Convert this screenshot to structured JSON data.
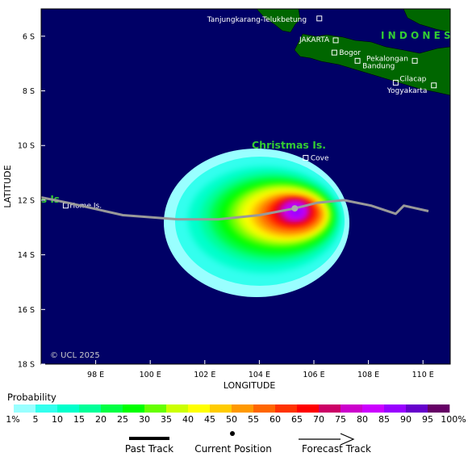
{
  "map": {
    "axes": {
      "xlabel": "LONGITUDE",
      "ylabel": "LATITUDE",
      "lon_range": [
        96,
        111
      ],
      "lat_range": [
        -18,
        -5
      ],
      "lon_ticks": [
        {
          "value": 98,
          "label": "98 E"
        },
        {
          "value": 100,
          "label": "100 E"
        },
        {
          "value": 102,
          "label": "102 E"
        },
        {
          "value": 104,
          "label": "104 E"
        },
        {
          "value": 106,
          "label": "106 E"
        },
        {
          "value": 108,
          "label": "108 E"
        },
        {
          "value": 110,
          "label": "110 E"
        }
      ],
      "lat_ticks": [
        {
          "value": -6,
          "label": "6 S"
        },
        {
          "value": -8,
          "label": "8 S"
        },
        {
          "value": -10,
          "label": "10 S"
        },
        {
          "value": -12,
          "label": "12 S"
        },
        {
          "value": -14,
          "label": "14 S"
        },
        {
          "value": -16,
          "label": "16 S"
        },
        {
          "value": -18,
          "label": "18 S"
        }
      ]
    },
    "copyright": "© UCL 2025",
    "region_labels": {
      "christmas": "Christmas Is.",
      "indonesia": "I N D O N E S",
      "cocos": "s Is."
    },
    "places": [
      {
        "name": "Tanjungkarang-Telukbetung",
        "lon": 106.2,
        "lat": -5.35
      },
      {
        "name": "JAKARTA",
        "lon": 106.8,
        "lat": -6.15
      },
      {
        "name": "Bogor",
        "lon": 106.75,
        "lat": -6.6
      },
      {
        "name": "Pekalongan",
        "lon": 109.7,
        "lat": -6.9
      },
      {
        "name": "Bandung",
        "lon": 107.6,
        "lat": -6.9
      },
      {
        "name": "Cilacap",
        "lon": 109.0,
        "lat": -7.7
      },
      {
        "name": "Yogyakarta",
        "lon": 110.4,
        "lat": -7.8
      },
      {
        "name": "Cove",
        "lon": 105.7,
        "lat": -10.45
      },
      {
        "name": "Home Is.",
        "lon": 96.9,
        "lat": -12.2
      }
    ],
    "track": {
      "past": [
        [
          110.2,
          -12.4
        ],
        [
          109.3,
          -12.2
        ],
        [
          109.0,
          -12.5
        ],
        [
          108.1,
          -12.2
        ],
        [
          107.1,
          -12.0
        ],
        [
          106.1,
          -12.1
        ],
        [
          105.3,
          -12.3
        ],
        [
          104.0,
          -12.55
        ],
        [
          102.5,
          -12.7
        ],
        [
          101.0,
          -12.7
        ],
        [
          99.0,
          -12.55
        ],
        [
          97.0,
          -12.1
        ],
        [
          96.0,
          -11.9
        ]
      ],
      "current": [
        105.3,
        -12.3
      ]
    },
    "colors": {
      "ocean": "#000066",
      "land": "#006600",
      "region_label": "#33cc33",
      "track": "#999999"
    }
  },
  "legend": {
    "title": "Probability",
    "labels": [
      "1%",
      "5",
      "10",
      "15",
      "20",
      "25",
      "30",
      "35",
      "40",
      "45",
      "50",
      "55",
      "60",
      "65",
      "70",
      "75",
      "80",
      "85",
      "90",
      "95",
      "100%"
    ],
    "colors": [
      "#99ffff",
      "#33ffee",
      "#00ffcc",
      "#00ff99",
      "#00ff44",
      "#00ff00",
      "#66ff00",
      "#ccff00",
      "#ffff00",
      "#ffcc00",
      "#ff9900",
      "#ff6600",
      "#ff3300",
      "#ff0000",
      "#cc0066",
      "#cc00cc",
      "#cc00ff",
      "#9900ff",
      "#6600cc",
      "#660066"
    ],
    "past_track": "Past Track",
    "current_position": "Current Position",
    "forecast_track": "Forecast Track"
  }
}
